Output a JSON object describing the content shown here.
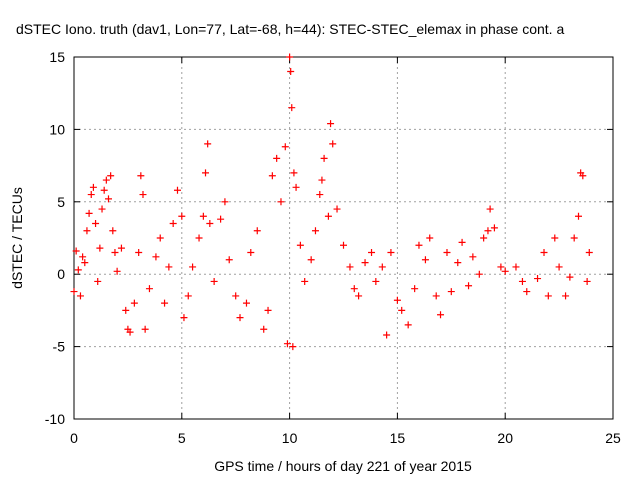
{
  "chart_data": {
    "type": "scatter",
    "title": "dSTEC Iono. truth (dav1, Lon=77, Lat=-68, h=44): STEC-STEC_elemax in phase cont. a",
    "xlabel": "GPS time / hours of day 221 of year 2015",
    "ylabel": "dSTEC  / TECUs",
    "xlim": [
      0,
      25
    ],
    "ylim": [
      -10,
      15
    ],
    "xticks": [
      0,
      5,
      10,
      15,
      20,
      25
    ],
    "yticks": [
      -10,
      -5,
      0,
      5,
      10,
      15
    ],
    "grid": true,
    "marker": "+",
    "color": "#ff0000",
    "series": [
      {
        "values": [
          [
            0.0,
            -1.2
          ],
          [
            0.1,
            1.6
          ],
          [
            0.2,
            0.3
          ],
          [
            0.3,
            -1.5
          ],
          [
            0.4,
            1.2
          ],
          [
            0.5,
            0.8
          ],
          [
            0.6,
            3.0
          ],
          [
            0.7,
            4.2
          ],
          [
            0.8,
            5.5
          ],
          [
            0.9,
            6.0
          ],
          [
            1.0,
            3.5
          ],
          [
            1.1,
            -0.5
          ],
          [
            1.2,
            1.8
          ],
          [
            1.3,
            4.5
          ],
          [
            1.4,
            5.8
          ],
          [
            1.5,
            6.5
          ],
          [
            1.6,
            5.2
          ],
          [
            1.7,
            6.8
          ],
          [
            1.8,
            3.0
          ],
          [
            1.9,
            1.5
          ],
          [
            2.0,
            0.2
          ],
          [
            2.2,
            1.8
          ],
          [
            2.4,
            -2.5
          ],
          [
            2.5,
            -3.8
          ],
          [
            2.6,
            -4.0
          ],
          [
            2.8,
            -2.0
          ],
          [
            3.0,
            1.5
          ],
          [
            3.1,
            6.8
          ],
          [
            3.2,
            5.5
          ],
          [
            3.3,
            -3.8
          ],
          [
            3.5,
            -1.0
          ],
          [
            3.8,
            1.2
          ],
          [
            4.0,
            2.5
          ],
          [
            4.2,
            -2.0
          ],
          [
            4.4,
            0.5
          ],
          [
            4.6,
            3.5
          ],
          [
            4.8,
            5.8
          ],
          [
            5.0,
            4.0
          ],
          [
            5.1,
            -3.0
          ],
          [
            5.3,
            -1.5
          ],
          [
            5.5,
            0.5
          ],
          [
            5.8,
            2.5
          ],
          [
            6.0,
            4.0
          ],
          [
            6.1,
            7.0
          ],
          [
            6.2,
            9.0
          ],
          [
            6.3,
            3.5
          ],
          [
            6.5,
            -0.5
          ],
          [
            6.8,
            3.8
          ],
          [
            7.0,
            5.0
          ],
          [
            7.2,
            1.0
          ],
          [
            7.5,
            -1.5
          ],
          [
            7.7,
            -3.0
          ],
          [
            8.0,
            -2.0
          ],
          [
            8.2,
            1.5
          ],
          [
            8.5,
            3.0
          ],
          [
            8.8,
            -3.8
          ],
          [
            9.0,
            -2.5
          ],
          [
            9.2,
            6.8
          ],
          [
            9.4,
            8.0
          ],
          [
            9.6,
            5.0
          ],
          [
            9.8,
            8.8
          ],
          [
            9.9,
            -4.8
          ],
          [
            10.0,
            15.0
          ],
          [
            10.05,
            14.0
          ],
          [
            10.1,
            11.5
          ],
          [
            10.15,
            -5.0
          ],
          [
            10.2,
            7.0
          ],
          [
            10.3,
            6.0
          ],
          [
            10.5,
            2.0
          ],
          [
            10.7,
            -0.5
          ],
          [
            11.0,
            1.0
          ],
          [
            11.2,
            3.0
          ],
          [
            11.4,
            5.5
          ],
          [
            11.5,
            6.5
          ],
          [
            11.6,
            8.0
          ],
          [
            11.8,
            4.0
          ],
          [
            11.9,
            10.4
          ],
          [
            12.0,
            9.0
          ],
          [
            12.2,
            4.5
          ],
          [
            12.5,
            2.0
          ],
          [
            12.8,
            0.5
          ],
          [
            13.0,
            -1.0
          ],
          [
            13.2,
            -1.5
          ],
          [
            13.5,
            0.8
          ],
          [
            13.8,
            1.5
          ],
          [
            14.0,
            -0.5
          ],
          [
            14.3,
            0.5
          ],
          [
            14.5,
            -4.2
          ],
          [
            14.7,
            1.5
          ],
          [
            15.0,
            -1.8
          ],
          [
            15.2,
            -2.5
          ],
          [
            15.5,
            -3.5
          ],
          [
            15.8,
            -1.0
          ],
          [
            16.0,
            2.0
          ],
          [
            16.3,
            1.0
          ],
          [
            16.5,
            2.5
          ],
          [
            16.8,
            -1.5
          ],
          [
            17.0,
            -2.8
          ],
          [
            17.3,
            1.5
          ],
          [
            17.5,
            -1.2
          ],
          [
            17.8,
            0.8
          ],
          [
            18.0,
            2.2
          ],
          [
            18.3,
            -0.8
          ],
          [
            18.5,
            1.2
          ],
          [
            18.8,
            0.0
          ],
          [
            19.0,
            2.5
          ],
          [
            19.2,
            3.0
          ],
          [
            19.3,
            4.5
          ],
          [
            19.5,
            3.2
          ],
          [
            19.8,
            0.5
          ],
          [
            20.0,
            0.2
          ],
          [
            20.5,
            0.5
          ],
          [
            20.8,
            -0.5
          ],
          [
            21.0,
            -1.2
          ],
          [
            21.5,
            -0.3
          ],
          [
            21.8,
            1.5
          ],
          [
            22.0,
            -1.5
          ],
          [
            22.3,
            2.5
          ],
          [
            22.5,
            0.5
          ],
          [
            22.8,
            -1.5
          ],
          [
            23.0,
            -0.2
          ],
          [
            23.2,
            2.5
          ],
          [
            23.4,
            4.0
          ],
          [
            23.5,
            7.0
          ],
          [
            23.6,
            6.8
          ],
          [
            23.8,
            -0.5
          ],
          [
            23.9,
            1.5
          ]
        ]
      }
    ]
  }
}
